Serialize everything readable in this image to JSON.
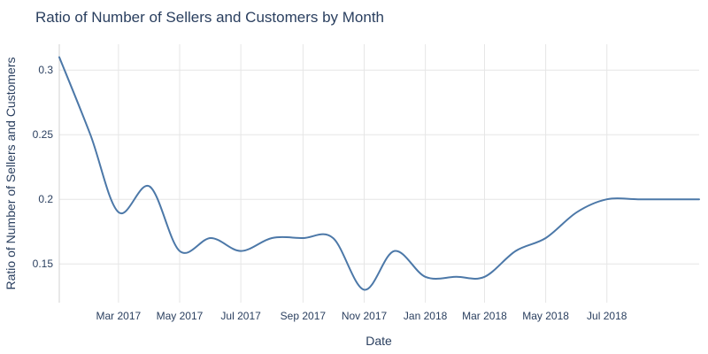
{
  "chart_data": {
    "type": "line",
    "title": "Ratio of Number of Sellers and Customers by Month",
    "xlabel": "Date",
    "ylabel": "Ratio of Number of Sellers and Customers",
    "x_ticks": [
      "Mar 2017",
      "May 2017",
      "Jul 2017",
      "Sep 2017",
      "Nov 2017",
      "Jan 2018",
      "Mar 2018",
      "May 2018",
      "Jul 2018"
    ],
    "y_ticks": [
      "0.15",
      "0.2",
      "0.25",
      "0.3"
    ],
    "ylim": [
      0.12,
      0.32
    ],
    "xlim": [
      "2017-01-01",
      "2018-10-01"
    ],
    "grid": true,
    "line_color": "#4c78a8",
    "series": [
      {
        "x": [
          "2017-01-01",
          "2017-02-01",
          "2017-03-01",
          "2017-04-01",
          "2017-05-01",
          "2017-06-01",
          "2017-07-01",
          "2017-08-01",
          "2017-09-01",
          "2017-10-01",
          "2017-11-01",
          "2017-12-01",
          "2018-01-01",
          "2018-02-01",
          "2018-03-01",
          "2018-04-01",
          "2018-05-01",
          "2018-06-01",
          "2018-07-01",
          "2018-08-01",
          "2018-09-01",
          "2018-10-01"
        ],
        "values": [
          0.31,
          0.25,
          0.19,
          0.21,
          0.16,
          0.17,
          0.16,
          0.17,
          0.17,
          0.17,
          0.13,
          0.16,
          0.14,
          0.14,
          0.14,
          0.16,
          0.17,
          0.19,
          0.2,
          0.2,
          0.2,
          0.2
        ]
      }
    ]
  }
}
